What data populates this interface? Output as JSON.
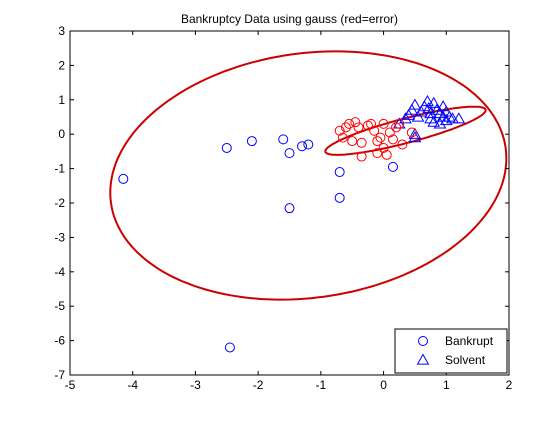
{
  "chart_data": {
    "type": "scatter",
    "title": "Bankruptcy Data using gauss (red=error)",
    "xlabel": "",
    "ylabel": "",
    "xlim": [
      -5,
      2
    ],
    "ylim": [
      -7,
      3
    ],
    "xticks": [
      "-5",
      "-4",
      "-3",
      "-2",
      "-1",
      "0",
      "1",
      "2"
    ],
    "yticks": [
      "3",
      "2",
      "1",
      "0",
      "-1",
      "-2",
      "-3",
      "-4",
      "-5",
      "-6",
      "-7"
    ],
    "grid": false,
    "legend_position": "bottom-right",
    "series": [
      {
        "name": "Bankrupt",
        "marker": "circle",
        "color": "#0000ff",
        "points": [
          [
            -4.15,
            -1.3
          ],
          [
            -2.45,
            -6.2
          ],
          [
            -2.5,
            -0.4
          ],
          [
            -2.1,
            -0.2
          ],
          [
            -1.6,
            -0.15
          ],
          [
            -1.5,
            -0.55
          ],
          [
            -1.5,
            -2.15
          ],
          [
            -1.3,
            -0.35
          ],
          [
            -1.2,
            -0.3
          ],
          [
            -0.7,
            -1.1
          ],
          [
            -0.7,
            -1.85
          ],
          [
            0.15,
            -0.95
          ]
        ]
      },
      {
        "name": "Solvent",
        "marker": "triangle",
        "color": "#0000ff",
        "points": [
          [
            0.25,
            0.3
          ],
          [
            0.35,
            0.45
          ],
          [
            0.4,
            0.55
          ],
          [
            0.45,
            0.7
          ],
          [
            0.5,
            0.85
          ],
          [
            0.5,
            -0.1
          ],
          [
            0.5,
            0.0
          ],
          [
            0.55,
            0.5
          ],
          [
            0.6,
            0.65
          ],
          [
            0.65,
            0.8
          ],
          [
            0.7,
            0.95
          ],
          [
            0.72,
            0.75
          ],
          [
            0.75,
            0.6
          ],
          [
            0.75,
            0.45
          ],
          [
            0.8,
            0.35
          ],
          [
            0.8,
            0.9
          ],
          [
            0.85,
            0.7
          ],
          [
            0.9,
            0.6
          ],
          [
            0.9,
            0.3
          ],
          [
            0.95,
            0.8
          ],
          [
            0.95,
            0.5
          ],
          [
            1.0,
            0.4
          ],
          [
            1.0,
            0.65
          ],
          [
            1.05,
            0.5
          ],
          [
            1.1,
            0.45
          ],
          [
            1.2,
            0.45
          ]
        ]
      },
      {
        "name": "",
        "marker": "circle",
        "color": "#ff0000",
        "points": [
          [
            -0.7,
            0.1
          ],
          [
            -0.65,
            -0.1
          ],
          [
            -0.6,
            0.2
          ],
          [
            -0.55,
            0.3
          ],
          [
            -0.5,
            -0.2
          ],
          [
            -0.45,
            0.35
          ],
          [
            -0.4,
            0.2
          ],
          [
            -0.35,
            -0.25
          ],
          [
            -0.35,
            -0.65
          ],
          [
            -0.25,
            0.25
          ],
          [
            -0.2,
            0.3
          ],
          [
            -0.15,
            0.1
          ],
          [
            -0.1,
            -0.55
          ],
          [
            -0.1,
            -0.2
          ],
          [
            -0.05,
            -0.1
          ],
          [
            0.0,
            0.3
          ],
          [
            0.0,
            -0.4
          ],
          [
            0.05,
            -0.6
          ],
          [
            0.1,
            0.05
          ],
          [
            0.15,
            -0.15
          ],
          [
            0.2,
            0.2
          ],
          [
            0.25,
            0.3
          ],
          [
            0.3,
            -0.3
          ],
          [
            0.45,
            0.05
          ]
        ]
      }
    ],
    "ellipses": [
      {
        "color": "#cc0000",
        "cx": -1.2,
        "cy": -1.2,
        "rx": 3.05,
        "ry": 3.7,
        "rotation_deg": -23
      },
      {
        "color": "#cc0000",
        "cx": 0.35,
        "cy": 0.1,
        "rx": 1.42,
        "ry": 0.33,
        "rotation_deg": 26.6
      }
    ],
    "legend": [
      {
        "label": "Bankrupt",
        "marker": "circle",
        "color": "#0000ff"
      },
      {
        "label": "Solvent",
        "marker": "triangle",
        "color": "#0000ff"
      }
    ]
  }
}
